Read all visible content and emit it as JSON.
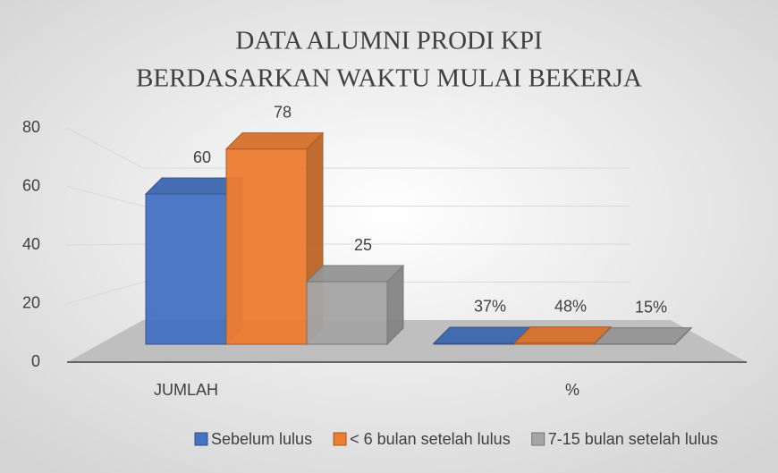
{
  "chart_data": {
    "type": "bar3d",
    "title": [
      "DATA ALUMNI PRODI KPI",
      "BERDASARKAN WAKTU MULAI BEKERJA"
    ],
    "categories": [
      "JUMLAH",
      "%"
    ],
    "series": [
      {
        "name": "Sebelum lulus",
        "color": "#4472c4",
        "values": [
          60,
          0.37
        ],
        "value_labels": [
          "60",
          "37%"
        ]
      },
      {
        "name": "< 6 bulan setelah lulus",
        "color": "#ed7d31",
        "values": [
          78,
          0.48
        ],
        "value_labels": [
          "78",
          "48%"
        ]
      },
      {
        "name": "7-15 bulan setelah lulus",
        "color": "#a5a5a5",
        "values": [
          25,
          0.15
        ],
        "value_labels": [
          "25",
          "15%"
        ]
      }
    ],
    "ylim": [
      0,
      80
    ],
    "yticks": [
      0,
      20,
      40,
      60,
      80
    ],
    "grid": true,
    "legend": "bottom"
  }
}
